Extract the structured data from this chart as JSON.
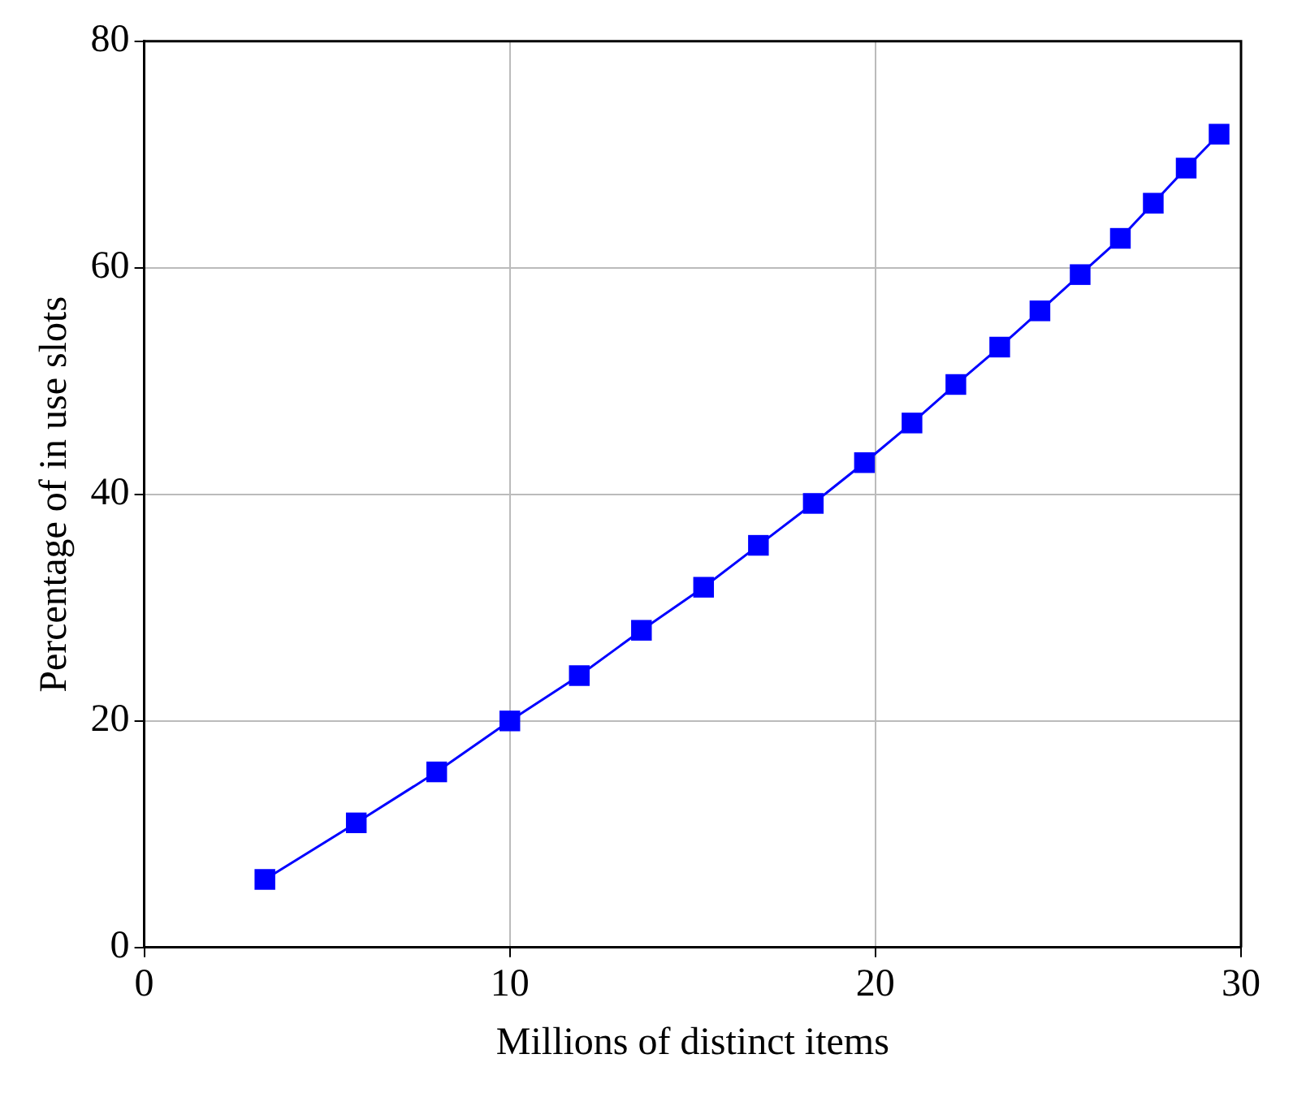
{
  "chart_data": {
    "type": "line",
    "xlabel": "Millions of distinct items",
    "ylabel": "Percentage of in use slots",
    "x": [
      3.3,
      5.8,
      8.0,
      10.0,
      11.9,
      13.6,
      15.3,
      16.8,
      18.3,
      19.7,
      21.0,
      22.2,
      23.4,
      24.5,
      25.6,
      26.7,
      27.6,
      28.5,
      29.4
    ],
    "series": [
      {
        "color": "#0000ff",
        "values": [
          6,
          11,
          15.5,
          20,
          24,
          28,
          31.8,
          35.5,
          39.2,
          42.8,
          46.3,
          49.7,
          53,
          56.2,
          59.4,
          62.6,
          65.7,
          68.8,
          71.8
        ]
      }
    ],
    "xlim": [
      0,
      30
    ],
    "xticks": [
      0,
      10,
      20,
      30
    ],
    "ylim": [
      0,
      80
    ],
    "yticks": [
      0,
      20,
      40,
      60,
      80
    ],
    "grid": true,
    "legend": false,
    "marker": "square",
    "line_style": "solid"
  }
}
